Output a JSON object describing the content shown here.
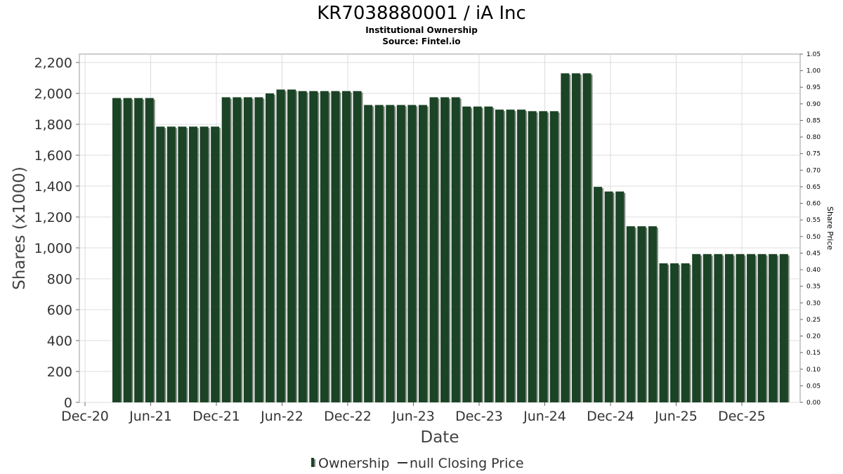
{
  "title": "KR7038880001 / iA Inc",
  "subtitle": "Institutional Ownership",
  "source": "Source: Fintel.io",
  "legend": {
    "ownership_label": "Ownership",
    "price_label": "null Closing Price"
  },
  "colors": {
    "bar": "#1b4325",
    "bar_shadow": "#7f8a80",
    "grid": "#dcdcdc"
  },
  "chart_data": {
    "type": "bar",
    "xlabel": "Date",
    "ylabel": "Shares (x1000)",
    "y2label": "Share Price",
    "ylim": [
      0,
      2200
    ],
    "y2lim": [
      0,
      1.05
    ],
    "yticks": [
      0,
      200,
      400,
      600,
      800,
      1000,
      1200,
      1400,
      1600,
      1800,
      2000,
      2200
    ],
    "ytick_labels": [
      "0",
      "200",
      "400",
      "600",
      "800",
      "1,000",
      "1,200",
      "1,400",
      "1,600",
      "1,800",
      "2,000",
      "2,200"
    ],
    "y2ticks": [
      "0.00",
      "0.05",
      "0.10",
      "0.15",
      "0.20",
      "0.25",
      "0.30",
      "0.35",
      "0.40",
      "0.45",
      "0.50",
      "0.55",
      "0.60",
      "0.65",
      "0.70",
      "0.75",
      "0.80",
      "0.85",
      "0.90",
      "0.95",
      "1.00",
      "1.05"
    ],
    "xticks": [
      "Dec-20",
      "Jun-21",
      "Dec-21",
      "Jun-22",
      "Dec-22",
      "Jun-23",
      "Dec-23",
      "Jun-24",
      "Dec-24",
      "Jun-25",
      "Dec-25"
    ],
    "grid": true,
    "legend_position": "bottom",
    "series": [
      {
        "name": "Ownership",
        "values": [
          1970,
          1970,
          1970,
          1970,
          1785,
          1785,
          1785,
          1785,
          1785,
          1785,
          1975,
          1975,
          1975,
          1975,
          2000,
          2025,
          2025,
          2015,
          2015,
          2015,
          2015,
          2015,
          2015,
          1925,
          1925,
          1925,
          1925,
          1925,
          1925,
          1975,
          1975,
          1975,
          1915,
          1915,
          1915,
          1895,
          1895,
          1895,
          1885,
          1885,
          1885,
          2130,
          2130,
          2130,
          1395,
          1365,
          1365,
          1140,
          1140,
          1140,
          900,
          900,
          900,
          960,
          960,
          960,
          960,
          960,
          960,
          960,
          960,
          960
        ]
      }
    ]
  }
}
